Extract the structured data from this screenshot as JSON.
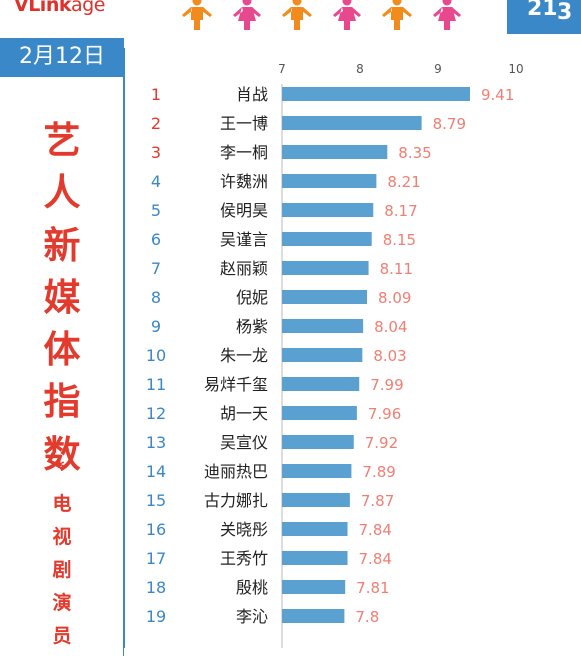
{
  "header": {
    "logo_brand": "VLink",
    "logo_rest": "age",
    "corner_text_1": "21",
    "corner_text_2": "3",
    "people_icons": [
      "person-icon-orange",
      "person-icon-pink",
      "person-icon-orange",
      "person-icon-pink",
      "person-icon-orange",
      "person-icon-pink"
    ],
    "icon_colors": {
      "orange": "#f28a1c",
      "pink": "#e8488e"
    }
  },
  "sidebar": {
    "date": "2月12日",
    "title_chars": [
      "艺",
      "人",
      "新",
      "媒",
      "体",
      "指",
      "数"
    ],
    "separator": "*",
    "subtitle_chars": [
      "电",
      "视",
      "剧",
      "演",
      "员"
    ]
  },
  "colors": {
    "accent_blue": "#3a88c8",
    "bar": "#5aa0d0",
    "title_red": "#e23a2c",
    "value_salmon": "#ef7f72",
    "rank_top3": "#e23a2c",
    "rank_rest": "#3a88c8"
  },
  "chart_data": {
    "type": "bar",
    "orientation": "horizontal",
    "xlim": [
      7,
      10
    ],
    "x_ticks": [
      "7",
      "8",
      "9",
      "10"
    ],
    "ranks": [
      "1",
      "2",
      "3",
      "4",
      "5",
      "6",
      "7",
      "8",
      "9",
      "10",
      "11",
      "12",
      "13",
      "14",
      "15",
      "16",
      "17",
      "18",
      "19"
    ],
    "categories": [
      "肖战",
      "王一博",
      "李一桐",
      "许魏洲",
      "侯明昊",
      "吴谨言",
      "赵丽颖",
      "倪妮",
      "杨紫",
      "朱一龙",
      "易烊千玺",
      "胡一天",
      "吴宣仪",
      "迪丽热巴",
      "古力娜扎",
      "关晓彤",
      "王秀竹",
      "殷桃",
      "李沁"
    ],
    "values": [
      9.41,
      8.79,
      8.35,
      8.21,
      8.17,
      8.15,
      8.11,
      8.09,
      8.04,
      8.03,
      7.99,
      7.96,
      7.92,
      7.89,
      7.87,
      7.84,
      7.84,
      7.81,
      7.8
    ],
    "value_labels": [
      "9.41",
      "8.79",
      "8.35",
      "8.21",
      "8.17",
      "8.15",
      "8.11",
      "8.09",
      "8.04",
      "8.03",
      "7.99",
      "7.96",
      "7.92",
      "7.89",
      "7.87",
      "7.84",
      "7.84",
      "7.81",
      "7.8"
    ],
    "legend": "none",
    "grid": false
  }
}
